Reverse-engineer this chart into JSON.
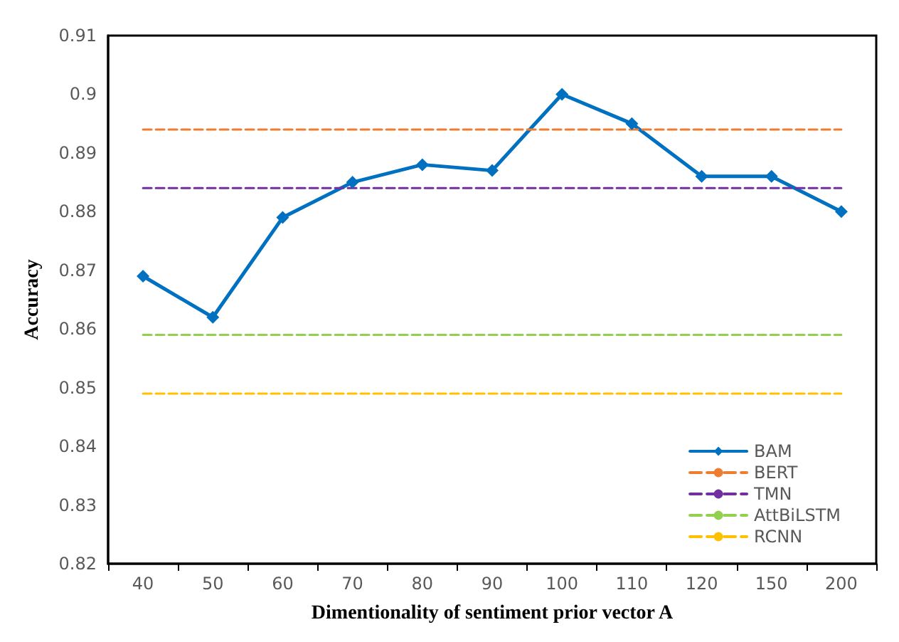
{
  "chart_data": {
    "type": "line",
    "xlabel": "Dimentionality of sentiment prior vector A",
    "ylabel": "Accuracy",
    "categories": [
      "40",
      "50",
      "60",
      "70",
      "80",
      "90",
      "100",
      "110",
      "120",
      "150",
      "200"
    ],
    "series": [
      {
        "name": "BAM",
        "color": "#0070c0",
        "marker": "diamond",
        "line_style": "solid",
        "values": [
          0.869,
          0.862,
          0.879,
          0.885,
          0.888,
          0.887,
          0.9,
          0.895,
          0.886,
          0.886,
          0.88
        ]
      },
      {
        "name": "BERT",
        "color": "#ed7d31",
        "marker": "none",
        "line_style": "dashed",
        "values": [
          0.894,
          0.894,
          0.894,
          0.894,
          0.894,
          0.894,
          0.894,
          0.894,
          0.894,
          0.894,
          0.894
        ]
      },
      {
        "name": "TMN",
        "color": "#7030a0",
        "marker": "none",
        "line_style": "dashed",
        "values": [
          0.884,
          0.884,
          0.884,
          0.884,
          0.884,
          0.884,
          0.884,
          0.884,
          0.884,
          0.884,
          0.884
        ]
      },
      {
        "name": "AttBiLSTM",
        "color": "#92d050",
        "marker": "none",
        "line_style": "dashed",
        "values": [
          0.859,
          0.859,
          0.859,
          0.859,
          0.859,
          0.859,
          0.859,
          0.859,
          0.859,
          0.859,
          0.859
        ]
      },
      {
        "name": "RCNN",
        "color": "#ffc000",
        "marker": "none",
        "line_style": "dashed",
        "values": [
          0.849,
          0.849,
          0.849,
          0.849,
          0.849,
          0.849,
          0.849,
          0.849,
          0.849,
          0.849,
          0.849
        ]
      }
    ],
    "ylim": [
      0.82,
      0.91
    ],
    "yticks": [
      0.82,
      0.83,
      0.84,
      0.85,
      0.86,
      0.87,
      0.88,
      0.89,
      0.9,
      0.91
    ],
    "grid": false,
    "legend": "bottom right"
  }
}
